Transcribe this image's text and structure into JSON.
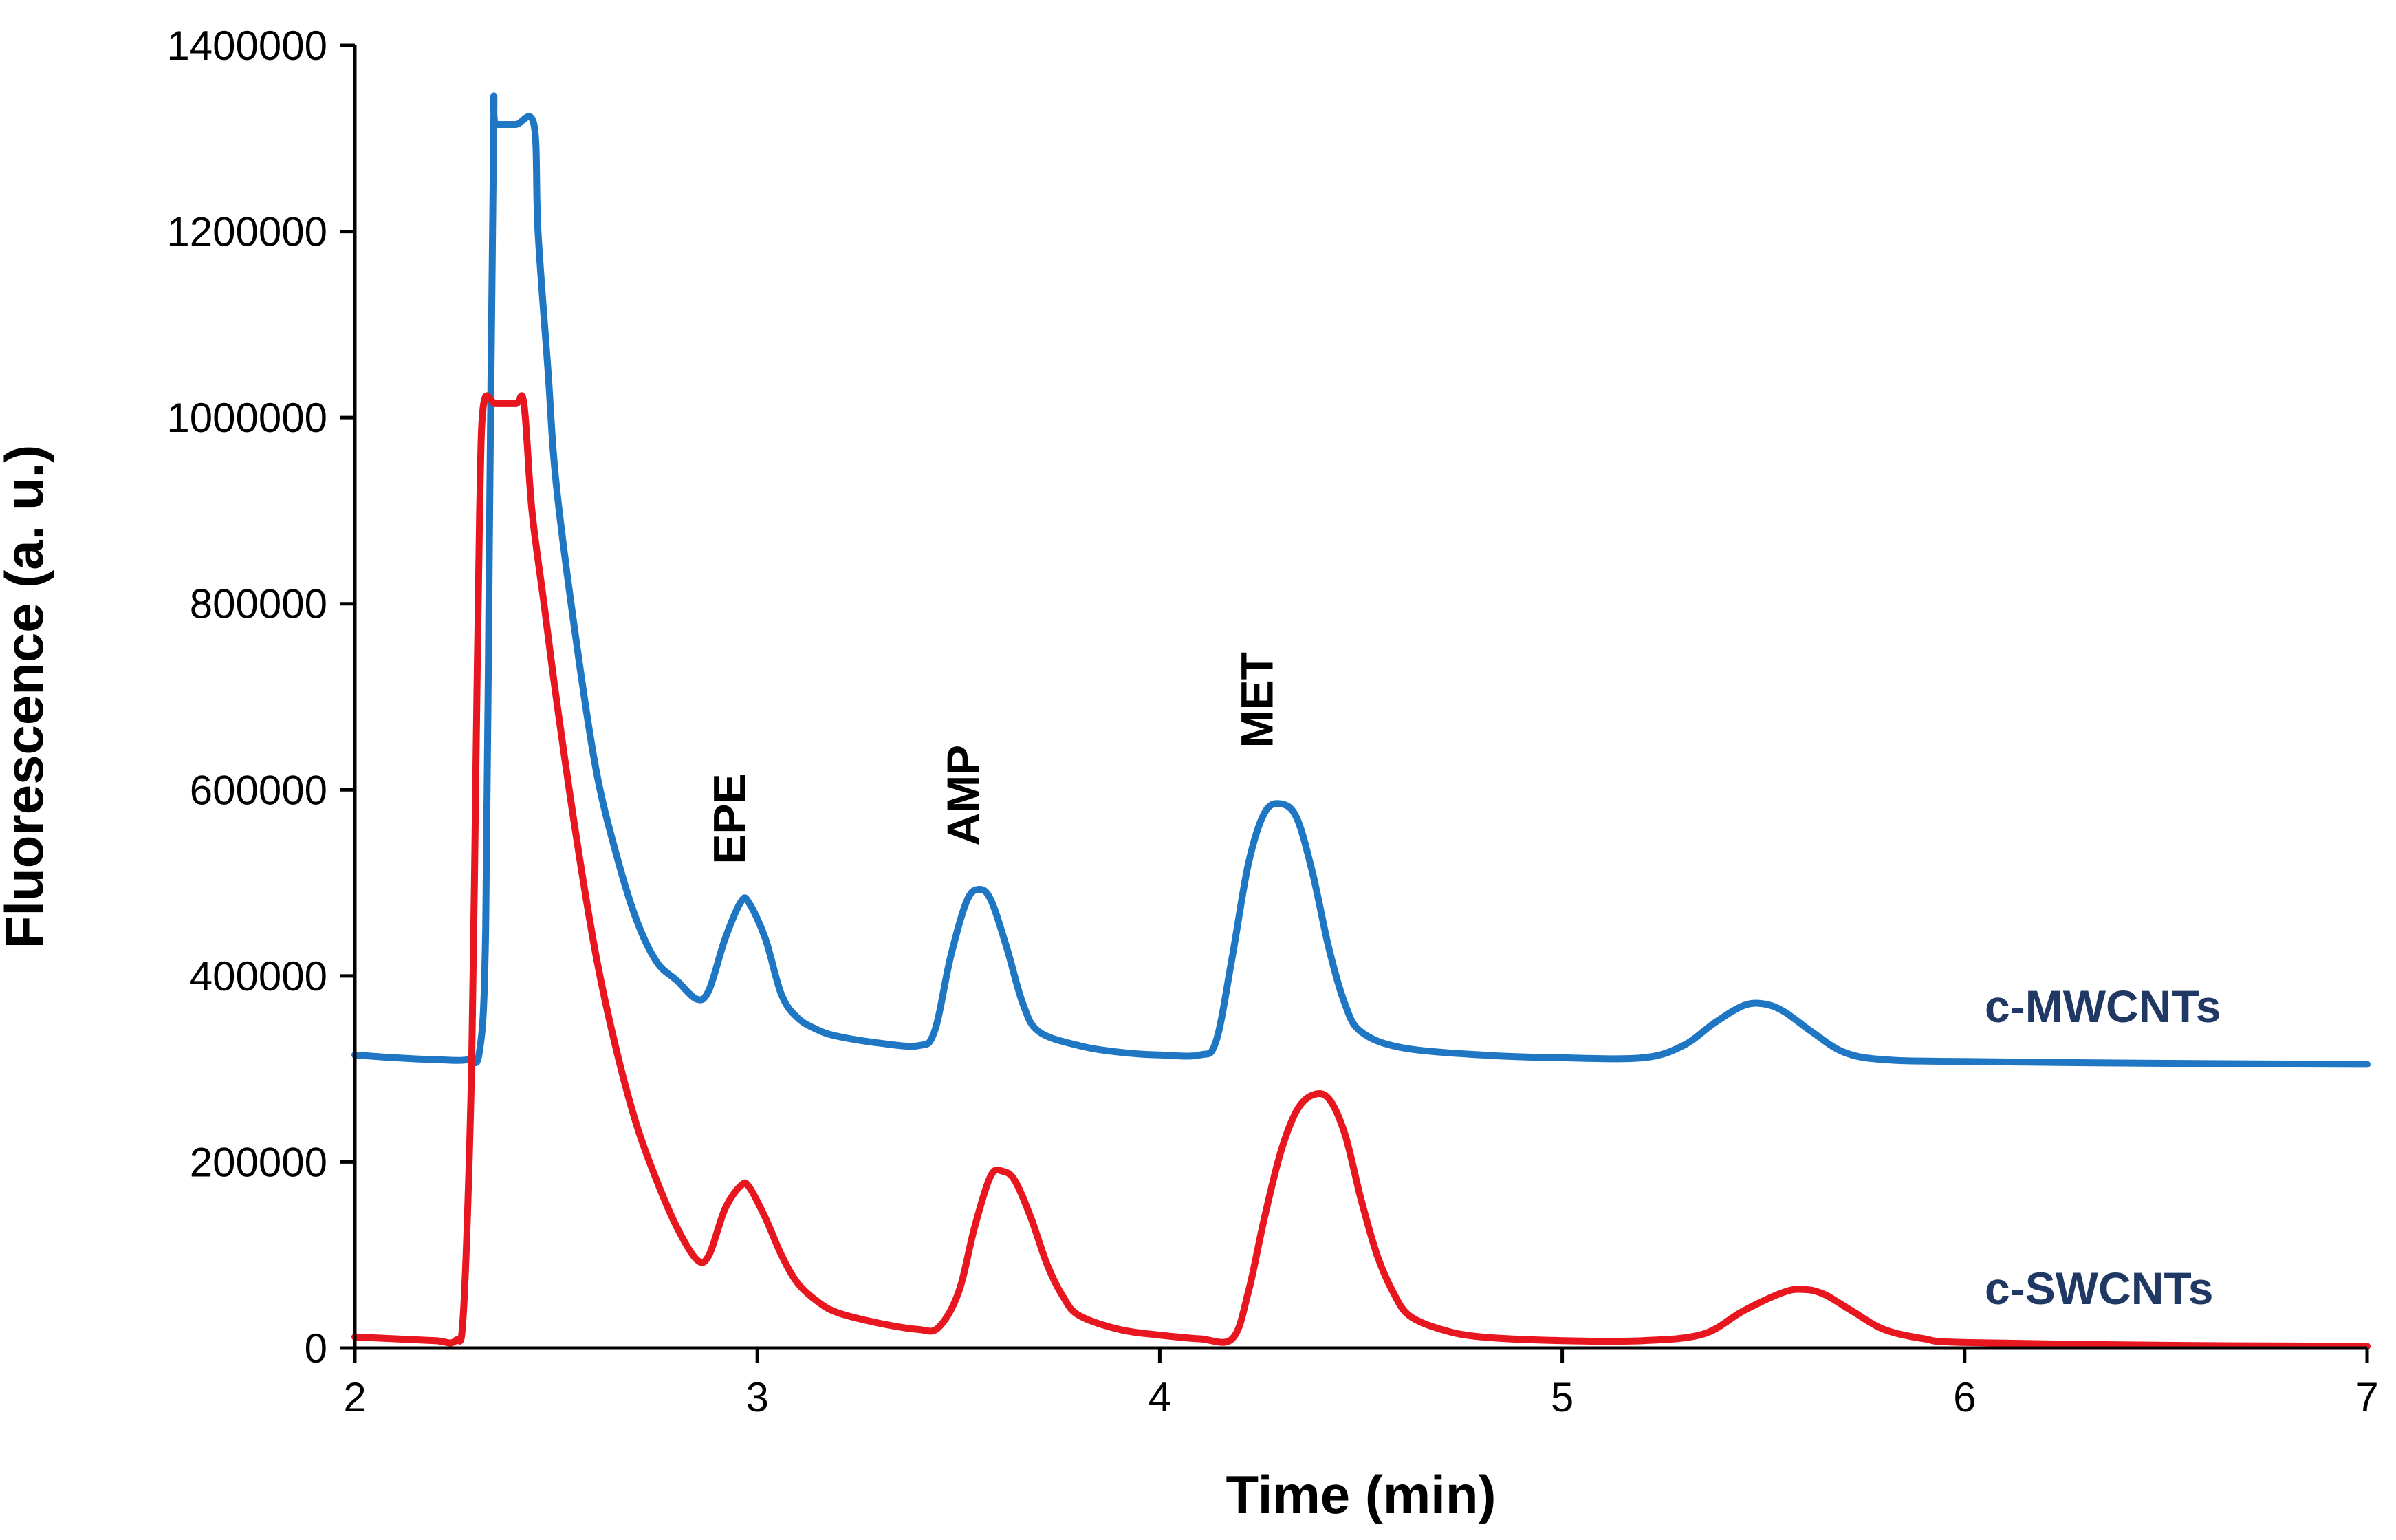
{
  "chart_data": {
    "type": "line",
    "title": "",
    "xlabel": "Time (min)",
    "ylabel": "Fluorescence (a. u.)",
    "xlim": [
      2,
      7
    ],
    "ylim": [
      0,
      1400000
    ],
    "xticks": [
      2,
      3,
      4,
      5,
      6,
      7
    ],
    "yticks": [
      0,
      200000,
      400000,
      600000,
      800000,
      1000000,
      1200000,
      1400000
    ],
    "xtick_labels": [
      "2",
      "3",
      "4",
      "5",
      "6",
      "7"
    ],
    "ytick_labels": [
      "0",
      "200000",
      "400000",
      "600000",
      "800000",
      "1000000",
      "1200000",
      "1400000"
    ],
    "grid": false,
    "legend": "none",
    "peak_annotations": [
      {
        "label": "EPE",
        "x": 2.97,
        "y": 520000
      },
      {
        "label": "AMP",
        "x": 3.55,
        "y": 540000
      },
      {
        "label": "MET",
        "x": 4.28,
        "y": 645000
      }
    ],
    "series": [
      {
        "name": "c-MWCNTs",
        "color": "#1f77c4",
        "label_color": "#1f3864",
        "label_anchor": {
          "x": 6.05,
          "y": 368000
        },
        "points": [
          [
            2.0,
            315000
          ],
          [
            2.1,
            312000
          ],
          [
            2.2,
            310000
          ],
          [
            2.28,
            310000
          ],
          [
            2.31,
            320000
          ],
          [
            2.325,
            450000
          ],
          [
            2.335,
            900000
          ],
          [
            2.345,
            1315000
          ],
          [
            2.35,
            1315000
          ],
          [
            2.4,
            1315000
          ],
          [
            2.445,
            1315000
          ],
          [
            2.455,
            1200000
          ],
          [
            2.48,
            1050000
          ],
          [
            2.5,
            930000
          ],
          [
            2.55,
            760000
          ],
          [
            2.6,
            620000
          ],
          [
            2.65,
            530000
          ],
          [
            2.7,
            460000
          ],
          [
            2.75,
            415000
          ],
          [
            2.8,
            395000
          ],
          [
            2.85,
            375000
          ],
          [
            2.88,
            385000
          ],
          [
            2.92,
            440000
          ],
          [
            2.96,
            480000
          ],
          [
            2.98,
            478000
          ],
          [
            3.02,
            440000
          ],
          [
            3.06,
            380000
          ],
          [
            3.1,
            355000
          ],
          [
            3.15,
            342000
          ],
          [
            3.2,
            335000
          ],
          [
            3.3,
            328000
          ],
          [
            3.4,
            325000
          ],
          [
            3.44,
            340000
          ],
          [
            3.48,
            420000
          ],
          [
            3.52,
            480000
          ],
          [
            3.55,
            493000
          ],
          [
            3.58,
            482000
          ],
          [
            3.62,
            430000
          ],
          [
            3.66,
            370000
          ],
          [
            3.7,
            340000
          ],
          [
            3.8,
            325000
          ],
          [
            3.9,
            318000
          ],
          [
            4.0,
            315000
          ],
          [
            4.1,
            315000
          ],
          [
            4.14,
            330000
          ],
          [
            4.18,
            420000
          ],
          [
            4.22,
            520000
          ],
          [
            4.26,
            575000
          ],
          [
            4.3,
            585000
          ],
          [
            4.34,
            570000
          ],
          [
            4.38,
            510000
          ],
          [
            4.42,
            430000
          ],
          [
            4.46,
            370000
          ],
          [
            4.5,
            340000
          ],
          [
            4.6,
            323000
          ],
          [
            4.8,
            315000
          ],
          [
            5.0,
            312000
          ],
          [
            5.2,
            312000
          ],
          [
            5.3,
            325000
          ],
          [
            5.38,
            350000
          ],
          [
            5.45,
            368000
          ],
          [
            5.5,
            370000
          ],
          [
            5.55,
            362000
          ],
          [
            5.62,
            340000
          ],
          [
            5.7,
            318000
          ],
          [
            5.8,
            310000
          ],
          [
            6.0,
            308000
          ],
          [
            6.5,
            306000
          ],
          [
            7.0,
            305000
          ]
        ]
      },
      {
        "name": "c-SWCNTs",
        "color": "#e8161e",
        "label_color": "#1f3864",
        "label_anchor": {
          "x": 6.05,
          "y": 65000
        },
        "points": [
          [
            2.0,
            12000
          ],
          [
            2.1,
            10000
          ],
          [
            2.2,
            8000
          ],
          [
            2.25,
            8000
          ],
          [
            2.27,
            40000
          ],
          [
            2.29,
            300000
          ],
          [
            2.3,
            600000
          ],
          [
            2.31,
            900000
          ],
          [
            2.32,
            1015000
          ],
          [
            2.35,
            1015000
          ],
          [
            2.4,
            1015000
          ],
          [
            2.42,
            1015000
          ],
          [
            2.44,
            900000
          ],
          [
            2.47,
            800000
          ],
          [
            2.5,
            700000
          ],
          [
            2.55,
            550000
          ],
          [
            2.6,
            420000
          ],
          [
            2.65,
            320000
          ],
          [
            2.7,
            240000
          ],
          [
            2.75,
            180000
          ],
          [
            2.8,
            130000
          ],
          [
            2.85,
            95000
          ],
          [
            2.88,
            100000
          ],
          [
            2.92,
            150000
          ],
          [
            2.96,
            175000
          ],
          [
            2.98,
            173000
          ],
          [
            3.02,
            140000
          ],
          [
            3.06,
            100000
          ],
          [
            3.1,
            70000
          ],
          [
            3.15,
            50000
          ],
          [
            3.2,
            38000
          ],
          [
            3.3,
            27000
          ],
          [
            3.4,
            20000
          ],
          [
            3.45,
            22000
          ],
          [
            3.5,
            60000
          ],
          [
            3.54,
            130000
          ],
          [
            3.58,
            185000
          ],
          [
            3.61,
            190000
          ],
          [
            3.64,
            180000
          ],
          [
            3.68,
            140000
          ],
          [
            3.72,
            90000
          ],
          [
            3.76,
            55000
          ],
          [
            3.8,
            35000
          ],
          [
            3.9,
            20000
          ],
          [
            4.0,
            14000
          ],
          [
            4.1,
            10000
          ],
          [
            4.18,
            10000
          ],
          [
            4.22,
            60000
          ],
          [
            4.26,
            140000
          ],
          [
            4.3,
            210000
          ],
          [
            4.34,
            255000
          ],
          [
            4.38,
            272000
          ],
          [
            4.42,
            268000
          ],
          [
            4.46,
            230000
          ],
          [
            4.5,
            160000
          ],
          [
            4.54,
            100000
          ],
          [
            4.58,
            60000
          ],
          [
            4.62,
            35000
          ],
          [
            4.7,
            20000
          ],
          [
            4.8,
            12000
          ],
          [
            5.0,
            8000
          ],
          [
            5.2,
            8000
          ],
          [
            5.35,
            15000
          ],
          [
            5.45,
            40000
          ],
          [
            5.55,
            60000
          ],
          [
            5.6,
            63000
          ],
          [
            5.65,
            58000
          ],
          [
            5.72,
            40000
          ],
          [
            5.8,
            20000
          ],
          [
            5.9,
            10000
          ],
          [
            6.0,
            6000
          ],
          [
            6.5,
            3000
          ],
          [
            7.0,
            2000
          ]
        ]
      }
    ]
  }
}
